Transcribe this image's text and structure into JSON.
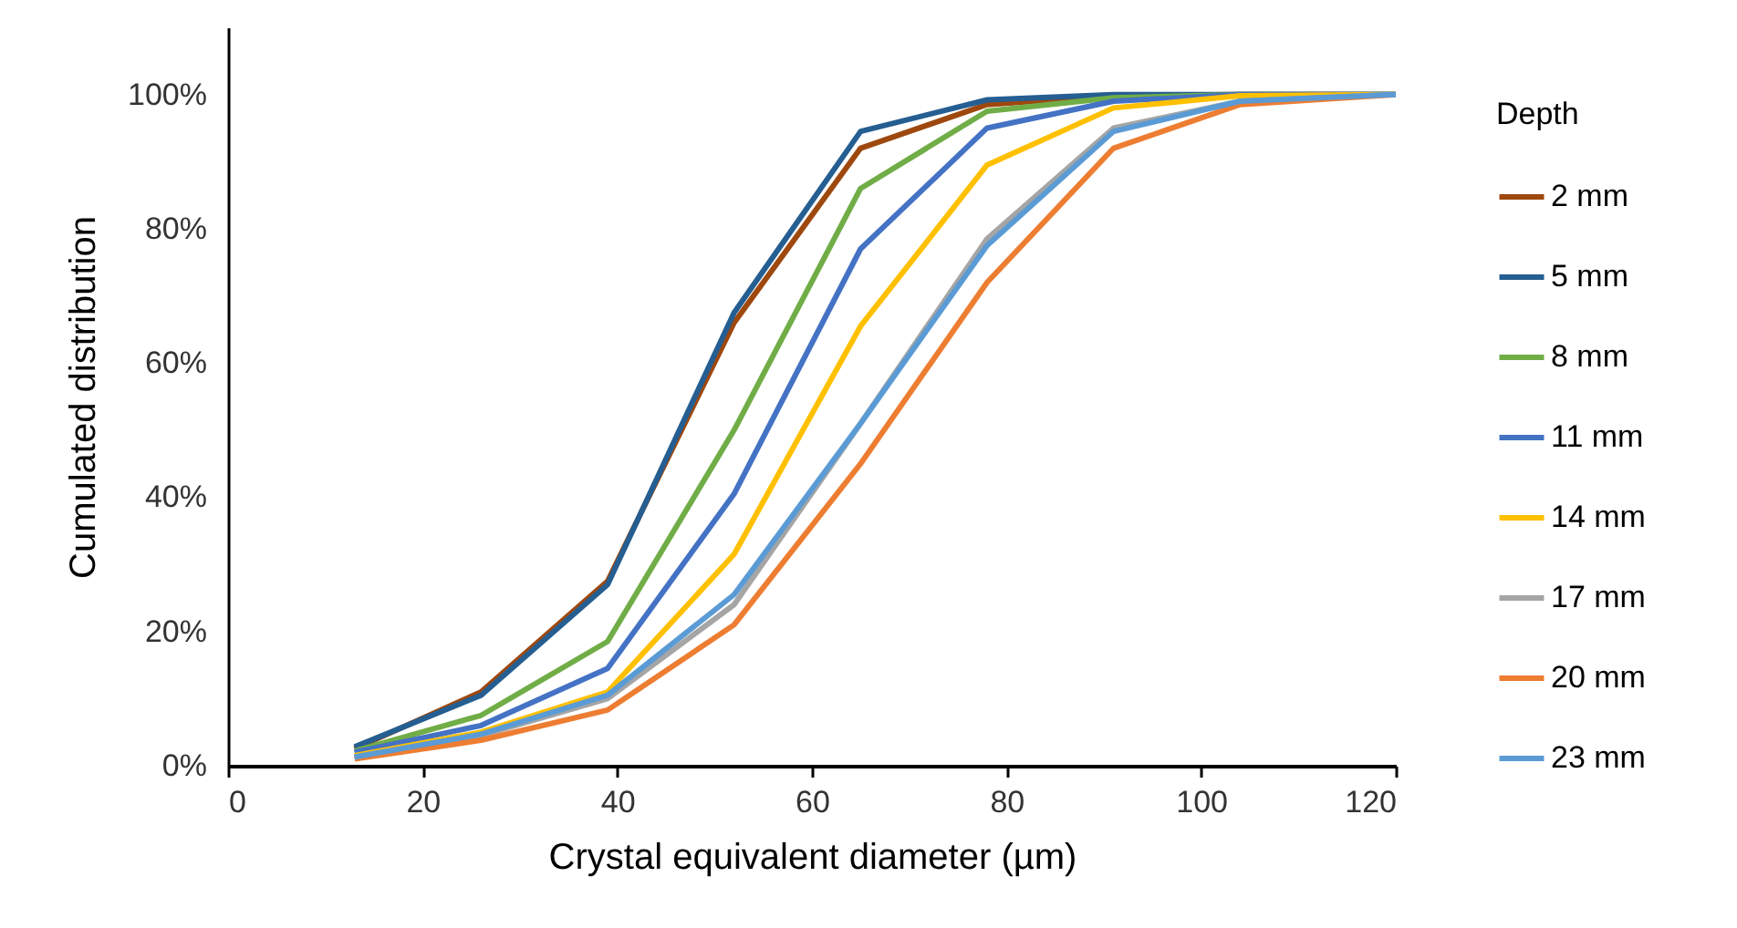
{
  "chart_data": {
    "type": "line",
    "xlabel": "Crystal equivalent diameter (µm)",
    "ylabel": "Cumulated distribution",
    "legend_title": "Depth",
    "legend": "right",
    "grid": false,
    "marker": "none",
    "line_style": "solid",
    "x": [
      13,
      26,
      39,
      52,
      65,
      78,
      91,
      104,
      120
    ],
    "xlim": [
      0,
      120
    ],
    "xticks": [
      0,
      20,
      40,
      60,
      80,
      100,
      120
    ],
    "ylim": [
      0,
      110
    ],
    "yticks": [
      {
        "value": 0,
        "label": "0%"
      },
      {
        "value": 20,
        "label": "20%"
      },
      {
        "value": 40,
        "label": "40%"
      },
      {
        "value": 60,
        "label": "60%"
      },
      {
        "value": 80,
        "label": "80%"
      },
      {
        "value": 100,
        "label": "100%"
      }
    ],
    "series": [
      {
        "name": "2 mm",
        "color": "#9e480e",
        "values": [
          2.5,
          11,
          27.5,
          66,
          92,
          98.5,
          99.8,
          100,
          100
        ]
      },
      {
        "name": "5 mm",
        "color": "#255e91",
        "values": [
          2.8,
          10.5,
          27,
          67.5,
          94.5,
          99.2,
          100,
          100,
          100
        ]
      },
      {
        "name": "8 mm",
        "color": "#70ad47",
        "values": [
          2.2,
          7.5,
          18.5,
          50,
          86,
          97.5,
          99.5,
          100,
          100
        ]
      },
      {
        "name": "11 mm",
        "color": "#4472c4",
        "values": [
          2,
          6,
          14.5,
          40.5,
          77,
          95,
          99,
          100,
          100
        ]
      },
      {
        "name": "14 mm",
        "color": "#ffc000",
        "values": [
          1.5,
          5,
          11,
          31.5,
          65.5,
          89.5,
          98,
          99.8,
          100
        ]
      },
      {
        "name": "17 mm",
        "color": "#a5a5a5",
        "values": [
          1.3,
          4.5,
          10,
          24,
          51,
          78.5,
          95,
          99,
          100
        ]
      },
      {
        "name": "20 mm",
        "color": "#ed7d31",
        "values": [
          1,
          3.8,
          8.3,
          21,
          45,
          72,
          92,
          98.5,
          100
        ]
      },
      {
        "name": "23 mm",
        "color": "#5b9bd5",
        "values": [
          1.3,
          4.7,
          10.5,
          25.5,
          51,
          77.5,
          94.5,
          99,
          100
        ]
      }
    ]
  }
}
